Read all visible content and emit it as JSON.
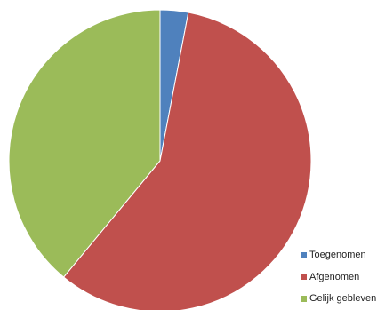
{
  "chart_data": {
    "type": "pie",
    "title": "",
    "legend_position": "bottom-right",
    "categories": [
      "Toegenomen",
      "Afgenomen",
      "Gelijk gebleven"
    ],
    "values": [
      3,
      58,
      39
    ],
    "colors": [
      "#4f81bd",
      "#c0504d",
      "#9bbb59"
    ],
    "start_angle": "12 o'clock",
    "direction": "clockwise"
  }
}
